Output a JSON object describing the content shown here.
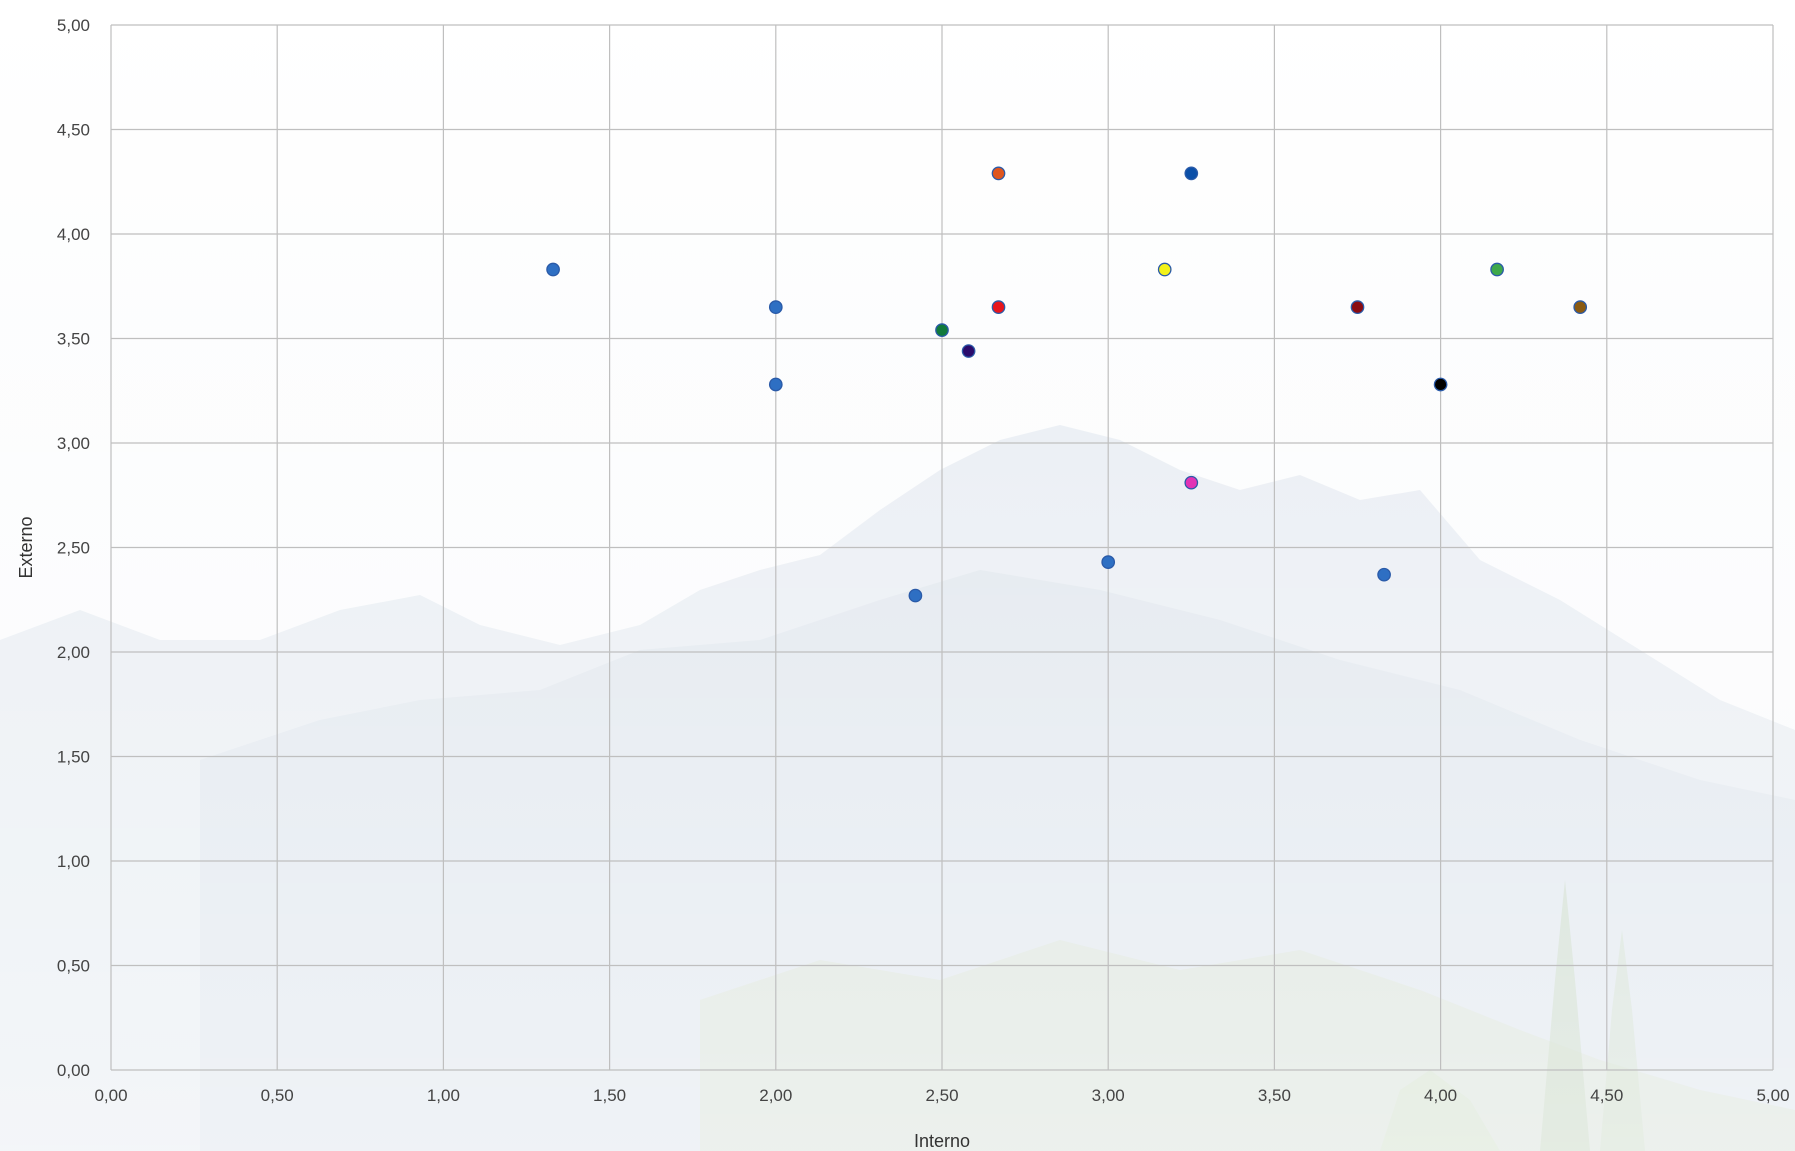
{
  "chart_data": {
    "type": "scatter",
    "title": "",
    "xlabel": "Interno",
    "ylabel": "Externo",
    "xlim": [
      0,
      5
    ],
    "ylim": [
      0,
      5
    ],
    "x_ticks": [
      "0,00",
      "0,50",
      "1,00",
      "1,50",
      "2,00",
      "2,50",
      "3,00",
      "3,50",
      "4,00",
      "4,50",
      "5,00"
    ],
    "y_ticks": [
      "0,00",
      "0,50",
      "1,00",
      "1,50",
      "2,00",
      "2,50",
      "3,00",
      "3,50",
      "4,00",
      "4,50",
      "5,00"
    ],
    "grid": true,
    "legend": "none",
    "points": [
      {
        "x": 1.33,
        "y": 3.83,
        "color": "#2e6fc3"
      },
      {
        "x": 2.0,
        "y": 3.65,
        "color": "#2e6fc3"
      },
      {
        "x": 2.0,
        "y": 3.28,
        "color": "#2e6fc3"
      },
      {
        "x": 2.42,
        "y": 2.27,
        "color": "#2e6fc3"
      },
      {
        "x": 2.5,
        "y": 3.54,
        "color": "#117a3c"
      },
      {
        "x": 2.58,
        "y": 3.44,
        "color": "#2a0b6b"
      },
      {
        "x": 2.67,
        "y": 4.29,
        "color": "#e0561e"
      },
      {
        "x": 2.67,
        "y": 3.65,
        "color": "#e8151c"
      },
      {
        "x": 3.0,
        "y": 2.43,
        "color": "#2e6fc3"
      },
      {
        "x": 3.17,
        "y": 3.83,
        "color": "#f2f21a"
      },
      {
        "x": 3.25,
        "y": 4.29,
        "color": "#0b4fa8"
      },
      {
        "x": 3.25,
        "y": 2.81,
        "color": "#e233b5"
      },
      {
        "x": 3.75,
        "y": 3.65,
        "color": "#8a0c12"
      },
      {
        "x": 3.83,
        "y": 2.37,
        "color": "#2e6fc3"
      },
      {
        "x": 4.0,
        "y": 3.28,
        "color": "#000000"
      },
      {
        "x": 4.17,
        "y": 3.83,
        "color": "#3ea84a"
      },
      {
        "x": 4.42,
        "y": 3.65,
        "color": "#8a5a12"
      }
    ]
  }
}
